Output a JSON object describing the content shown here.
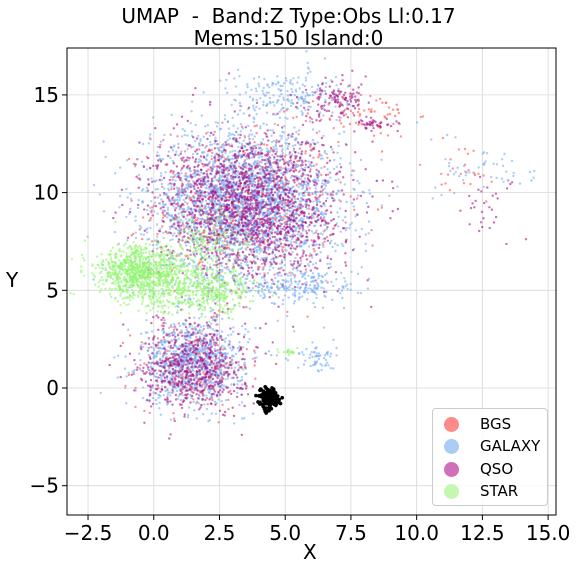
{
  "chart_data": {
    "type": "scatter",
    "title_line1": "UMAP  -  Band:Z Type:Obs Ll:0.17",
    "title_line2": "Mems:150 Island:0",
    "xlabel": "X",
    "ylabel": "Y",
    "xlim": [
      -3.3,
      15.3
    ],
    "ylim": [
      -6.5,
      17.4
    ],
    "xticks": [
      -2.5,
      0.0,
      2.5,
      5.0,
      7.5,
      10.0,
      12.5,
      15.0
    ],
    "xtick_labels": [
      "−2.5",
      "0.0",
      "2.5",
      "5.0",
      "7.5",
      "10.0",
      "12.5",
      "15.0"
    ],
    "yticks": [
      -5,
      0,
      5,
      10,
      15
    ],
    "ytick_labels": [
      "−5",
      "0",
      "5",
      "10",
      "15"
    ],
    "grid": true,
    "legend_position": "lower-right",
    "series": [
      {
        "name": "BGS",
        "color": "#ff4d4d",
        "legend_color": "#ff8a8a",
        "clusters": [
          {
            "cx": 3.5,
            "cy": 9.5,
            "sx": 2.3,
            "sy": 2.6,
            "n": 700
          },
          {
            "cx": 1.5,
            "cy": 1.2,
            "sx": 1.4,
            "sy": 1.5,
            "n": 250
          },
          {
            "cx": 8.0,
            "cy": 14.0,
            "sx": 1.3,
            "sy": 0.8,
            "n": 70
          },
          {
            "cx": 11.5,
            "cy": 11.0,
            "sx": 1.4,
            "sy": 1.2,
            "n": 25
          }
        ]
      },
      {
        "name": "GALAXY",
        "color": "#74aef5",
        "legend_color": "#a9cdf5",
        "clusters": [
          {
            "cx": 3.5,
            "cy": 9.5,
            "sx": 2.4,
            "sy": 2.5,
            "n": 2600
          },
          {
            "cx": 1.5,
            "cy": 1.3,
            "sx": 1.3,
            "sy": 1.4,
            "n": 900
          },
          {
            "cx": 5.0,
            "cy": 15.0,
            "sx": 1.5,
            "sy": 0.9,
            "n": 180
          },
          {
            "cx": 6.2,
            "cy": 1.5,
            "sx": 0.5,
            "sy": 0.5,
            "n": 60
          },
          {
            "cx": 12.8,
            "cy": 11.2,
            "sx": 1.2,
            "sy": 1.0,
            "n": 50
          },
          {
            "cx": 5.5,
            "cy": 5.2,
            "sx": 1.6,
            "sy": 0.6,
            "n": 200
          }
        ]
      },
      {
        "name": "QSO",
        "color": "#a6128a",
        "legend_color": "#d070b8",
        "clusters": [
          {
            "cx": 3.6,
            "cy": 9.3,
            "sx": 2.3,
            "sy": 2.4,
            "n": 1600
          },
          {
            "cx": 1.5,
            "cy": 1.1,
            "sx": 1.3,
            "sy": 1.5,
            "n": 600
          },
          {
            "cx": 7.0,
            "cy": 14.8,
            "sx": 0.9,
            "sy": 0.7,
            "n": 120
          },
          {
            "cx": 8.5,
            "cy": 13.5,
            "sx": 0.5,
            "sy": 0.2,
            "n": 40
          },
          {
            "cx": 12.7,
            "cy": 9.5,
            "sx": 0.8,
            "sy": 1.0,
            "n": 30
          }
        ]
      },
      {
        "name": "STAR",
        "color": "#8ff56e",
        "legend_color": "#c4f7b0",
        "clusters": [
          {
            "cx": -0.5,
            "cy": 5.9,
            "sx": 1.1,
            "sy": 0.9,
            "n": 900
          },
          {
            "cx": 1.8,
            "cy": 5.0,
            "sx": 1.4,
            "sy": 0.8,
            "n": 500
          },
          {
            "cx": 2.2,
            "cy": 7.5,
            "sx": 1.0,
            "sy": 1.0,
            "n": 150
          },
          {
            "cx": 5.2,
            "cy": 1.9,
            "sx": 0.3,
            "sy": 0.1,
            "n": 20
          }
        ]
      },
      {
        "name": "",
        "color": "#000000",
        "clusters": [
          {
            "cx": 4.35,
            "cy": -0.55,
            "sx": 0.25,
            "sy": 0.35,
            "n": 150
          }
        ]
      }
    ]
  }
}
